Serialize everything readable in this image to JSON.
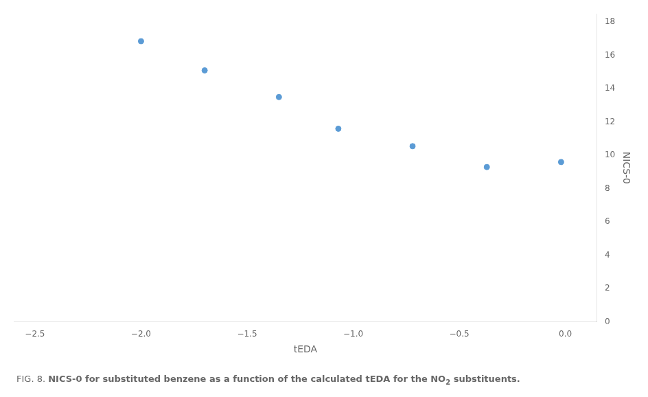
{
  "chart_data": {
    "type": "scatter",
    "x": [
      -2.0,
      -1.7,
      -1.35,
      -1.07,
      -0.72,
      -0.37,
      -0.02
    ],
    "values": [
      16.85,
      15.1,
      13.5,
      11.6,
      10.55,
      9.3,
      9.6
    ],
    "color": "#5B9BD5",
    "marker": "circle",
    "xlabel": "tEDA",
    "ylabel": "NICS-0",
    "xlim": [
      -2.6,
      0.15
    ],
    "ylim": [
      0,
      18.5
    ],
    "xticks": [
      {
        "value": -2.5,
        "label": "−2.5"
      },
      {
        "value": -2.0,
        "label": "−2.0"
      },
      {
        "value": -1.5,
        "label": "−1.5"
      },
      {
        "value": -1.0,
        "label": "−1.0"
      },
      {
        "value": -0.5,
        "label": "−0.5"
      },
      {
        "value": 0.0,
        "label": "0.0"
      }
    ],
    "yticks": [
      0,
      2,
      4,
      6,
      8,
      10,
      12,
      14,
      16,
      18
    ],
    "grid": false,
    "annotations": [
      "FIG. 8.",
      "NICS-0 for substituted benzene as a function of the calculated tEDA for the NO",
      "2",
      " substituents."
    ]
  }
}
